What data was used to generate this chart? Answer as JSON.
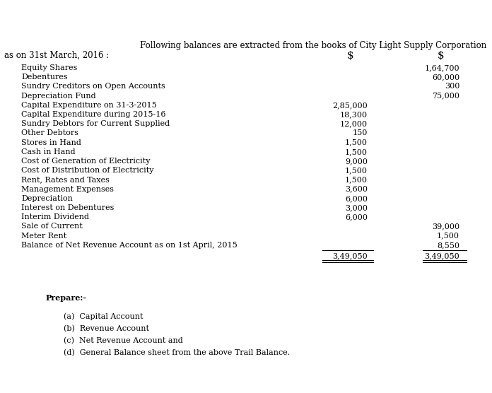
{
  "title_line1": "Following balances are extracted from the books of City Light Supply Corporation",
  "title_line2": "as on 31st March, 2016 :",
  "col_header1": "$",
  "col_header2": "$",
  "rows": [
    {
      "label": "Equity Shares",
      "dr": "",
      "cr": "1,64,700"
    },
    {
      "label": "Debentures",
      "dr": "",
      "cr": "60,000"
    },
    {
      "label": "Sundry Creditors on Open Accounts",
      "dr": "",
      "cr": "300"
    },
    {
      "label": "Depreciation Fund",
      "dr": "",
      "cr": "75,000"
    },
    {
      "label": "Capital Expenditure on 31-3-2015",
      "dr": "2,85,000",
      "cr": ""
    },
    {
      "label": "Capital Expenditure during 2015-16",
      "dr": "18,300",
      "cr": ""
    },
    {
      "label": "Sundry Debtors for Current Supplied",
      "dr": "12,000",
      "cr": ""
    },
    {
      "label": "Other Debtors",
      "dr": "150",
      "cr": ""
    },
    {
      "label": "Stores in Hand",
      "dr": "1,500",
      "cr": ""
    },
    {
      "label": "Cash in Hand",
      "dr": "1,500",
      "cr": ""
    },
    {
      "label": "Cost of Generation of Electricity",
      "dr": "9,000",
      "cr": ""
    },
    {
      "label": "Cost of Distribution of Electricity",
      "dr": "1,500",
      "cr": ""
    },
    {
      "label": "Rent, Rates and Taxes",
      "dr": "1,500",
      "cr": ""
    },
    {
      "label": "Management Expenses",
      "dr": "3,600",
      "cr": ""
    },
    {
      "label": "Depreciation",
      "dr": "6,000",
      "cr": ""
    },
    {
      "label": "Interest on Debentures",
      "dr": "3,000",
      "cr": ""
    },
    {
      "label": "Interim Dividend",
      "dr": "6,000",
      "cr": ""
    },
    {
      "label": "Sale of Current",
      "dr": "",
      "cr": "39,000"
    },
    {
      "label": "Meter Rent",
      "dr": "",
      "cr": "1,500"
    },
    {
      "label": "Balance of Net Revenue Account as on 1st April, 2015",
      "dr": "",
      "cr": "8,550"
    }
  ],
  "total_dr": "3,49,050",
  "total_cr": "3,49,050",
  "prepare_label": "Prepare:-",
  "prepare_items": [
    "(a)  Capital Account",
    "(b)  Revenue Account",
    "(c)  Net Revenue Account and",
    "(d)  General Balance sheet from the above Trail Balance."
  ],
  "bg_color": "#ffffff",
  "text_color": "#000000",
  "font_size": 8.0,
  "title_font_size": 8.5,
  "dollar_font_size": 11.0
}
